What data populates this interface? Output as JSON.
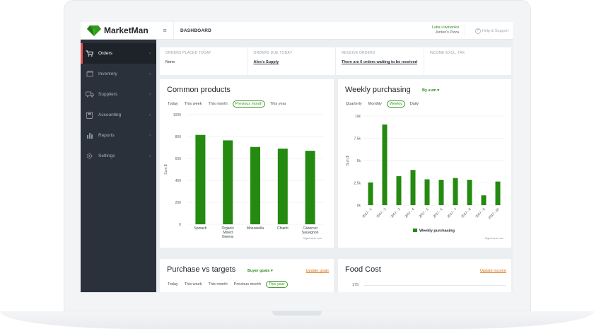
{
  "app": {
    "name": "MarketMan"
  },
  "header": {
    "menu_icon": "hamburger-icon",
    "title": "DASHBOARD",
    "user_name": "Luba Litvinenko",
    "company": "Jorden's Pizza",
    "help": "Help & Support"
  },
  "sidebar": {
    "items": [
      {
        "label": "Orders",
        "icon": "cart-icon"
      },
      {
        "label": "Inventory",
        "icon": "box-icon"
      },
      {
        "label": "Suppliers",
        "icon": "truck-icon"
      },
      {
        "label": "Accounting",
        "icon": "calculator-icon"
      },
      {
        "label": "Reports",
        "icon": "bar-chart-icon"
      },
      {
        "label": "Settings",
        "icon": "gear-icon"
      }
    ]
  },
  "stats": [
    {
      "label": "ORDERS PLACED TODAY",
      "value": "None"
    },
    {
      "label": "ORDERS DUE TODAY",
      "value": "Alex's Supply"
    },
    {
      "label": "RECEIVE ORDERS",
      "value": "There are 6 orders waiting to be received"
    },
    {
      "label": "INCOME EXCL. TAX",
      "value": ""
    }
  ],
  "common_products": {
    "title": "Common products",
    "ranges": [
      "Today",
      "This week",
      "This month",
      "Previous month",
      "This year"
    ],
    "selected": "Previous month",
    "credit": "Highcharts.com"
  },
  "weekly_purchasing": {
    "title": "Weekly purchasing",
    "dropdown": "By sum",
    "ranges": [
      "Quarterly",
      "Monthly",
      "Weekly",
      "Daily"
    ],
    "selected": "Weekly",
    "credit": "Highcharts.com"
  },
  "purchase_targets": {
    "title": "Purchase vs targets",
    "dropdown": "Buyer goals",
    "link": "Update goals",
    "ranges": [
      "Today",
      "This week",
      "This month",
      "Previous month",
      "This year"
    ],
    "selected": "This year"
  },
  "food_cost": {
    "title": "Food Cost",
    "link": "Update income",
    "first_tick": "175"
  },
  "colors": {
    "accent_green": "#3d9a2a",
    "bar_green": "#248a10",
    "link_orange": "#e0761a",
    "sidebar_bg": "#2b313a",
    "active_marker": "#e25353"
  },
  "chart_data": [
    {
      "type": "bar",
      "title": "Common products",
      "ylabel": "Sum $",
      "categories": [
        "Spinach",
        "Organic Mixed Greens",
        "Mozzarella",
        "Chianti",
        "Cabernet Sauvignon"
      ],
      "values": [
        815,
        765,
        705,
        690,
        670
      ],
      "ylim": [
        0,
        1000
      ],
      "yticks": [
        "0",
        "200",
        "400",
        "600",
        "800",
        "1000"
      ],
      "grid": true
    },
    {
      "type": "bar",
      "title": "Weekly purchasing",
      "ylabel": "Sum $",
      "categories": [
        "2017 - 1",
        "2017 - 2",
        "2017 - 3",
        "2017 - 4",
        "2017 - 5",
        "2017 - 6",
        "2017 - 7",
        "2017 - 8",
        "2017 - 9",
        "2017 - 10"
      ],
      "series": [
        {
          "name": "Weekly purchasing",
          "values": [
            2550,
            9050,
            3250,
            3950,
            2900,
            2850,
            3050,
            2850,
            1100,
            2650
          ]
        }
      ],
      "ylim": [
        0,
        10000
      ],
      "yticks": [
        "0k",
        "2.5k",
        "5k",
        "7.5k",
        "10k"
      ],
      "grid": true,
      "legend": "bottom-center"
    }
  ]
}
